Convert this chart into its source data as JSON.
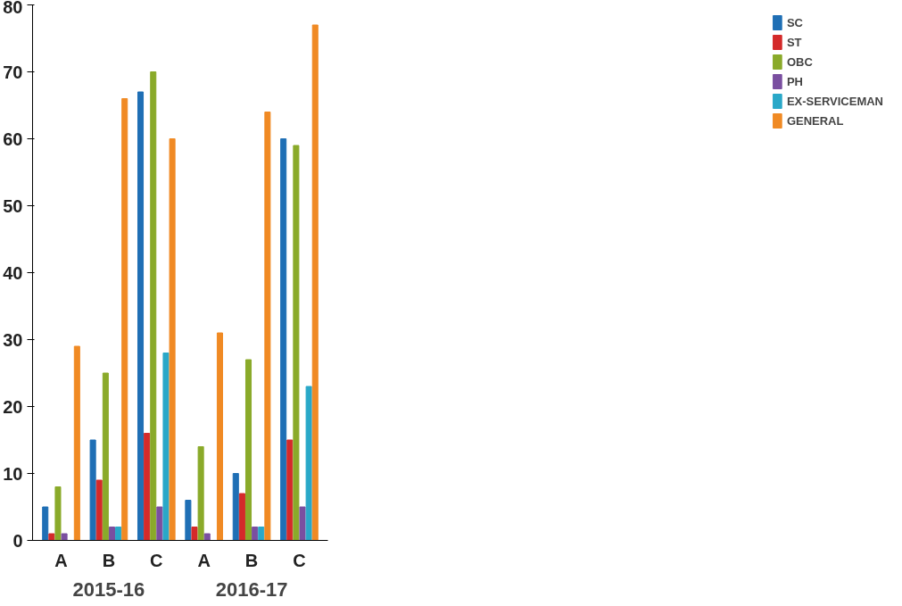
{
  "chart_data": {
    "type": "bar",
    "categories": [
      "A",
      "B",
      "C",
      "A",
      "B",
      "C"
    ],
    "series": [
      {
        "name": "SC",
        "color": "#1f6fb5",
        "values": [
          5,
          15,
          67,
          6,
          10,
          60
        ]
      },
      {
        "name": "ST",
        "color": "#d42a2a",
        "values": [
          1,
          9,
          16,
          2,
          7,
          15
        ]
      },
      {
        "name": "OBC",
        "color": "#8aaa2a",
        "values": [
          8,
          25,
          70,
          14,
          27,
          59
        ]
      },
      {
        "name": "PH",
        "color": "#7a4fa0",
        "values": [
          1,
          2,
          5,
          1,
          2,
          5
        ]
      },
      {
        "name": "EX-SERVICEMAN",
        "color": "#2aa8c8",
        "values": [
          0,
          2,
          28,
          0,
          2,
          23
        ]
      },
      {
        "name": "GENERAL",
        "color": "#f08a24",
        "values": [
          29,
          66,
          60,
          31,
          64,
          77
        ]
      }
    ],
    "annotations": [
      "2015-16",
      "2016-17"
    ],
    "ylim": [
      0,
      80
    ],
    "yticks": [
      0,
      10,
      20,
      30,
      40,
      50,
      60,
      70,
      80
    ],
    "grid": false,
    "legend": "top right"
  }
}
